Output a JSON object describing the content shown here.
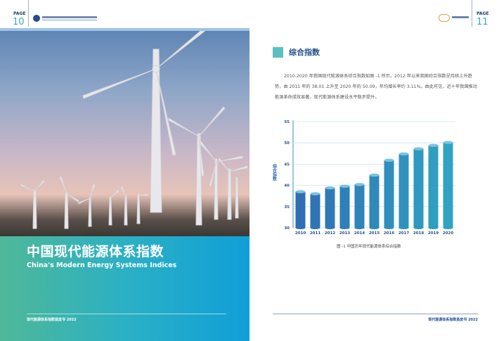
{
  "left_page": {
    "page_label": "PAGE",
    "page_number": "10",
    "title_cn": "中国现代能源体系指数",
    "title_en": "China's Modern Energy Systems Indices",
    "footer": "现代能源体系指数蓝皮书 2022"
  },
  "right_page": {
    "page_label": "PAGE",
    "page_number": "11",
    "section_title": "综合指数",
    "paragraph": "2010-2020 年我国现代能源体系综合指数如图 -1 所示。2012 年以来我国综合指数呈持续上升趋势，由 2011 年的 38.01 上升至 2020 年的 50.09，年均增长率约 3.11%。由此可见，近十年我国推动能源革命成效显著，现代能源体系建设水平稳步提升。",
    "figure_caption": "图 -1  中国历年现代能源体系综合指数",
    "footer": "现代能源体系指数蓝皮书 2022"
  },
  "colors": {
    "accent_teal": "#5bbfbf",
    "heading_blue": "#1f4e8c",
    "bar_start": "#2f6fb3",
    "bar_end": "#2fa3c2"
  },
  "chart_data": {
    "type": "bar",
    "categories": [
      "2010",
      "2011",
      "2012",
      "2013",
      "2014",
      "2015",
      "2016",
      "2017",
      "2018",
      "2019",
      "2020"
    ],
    "values": [
      38.5,
      38.01,
      39.4,
      39.8,
      40.2,
      42.4,
      45.9,
      47.4,
      48.6,
      49.4,
      50.09
    ],
    "ylabel": "综合指数",
    "ylim": [
      30,
      55
    ],
    "yticks": [
      "30",
      "35",
      "40",
      "45",
      "50",
      "55"
    ],
    "grid": true,
    "style": "cylinder"
  }
}
